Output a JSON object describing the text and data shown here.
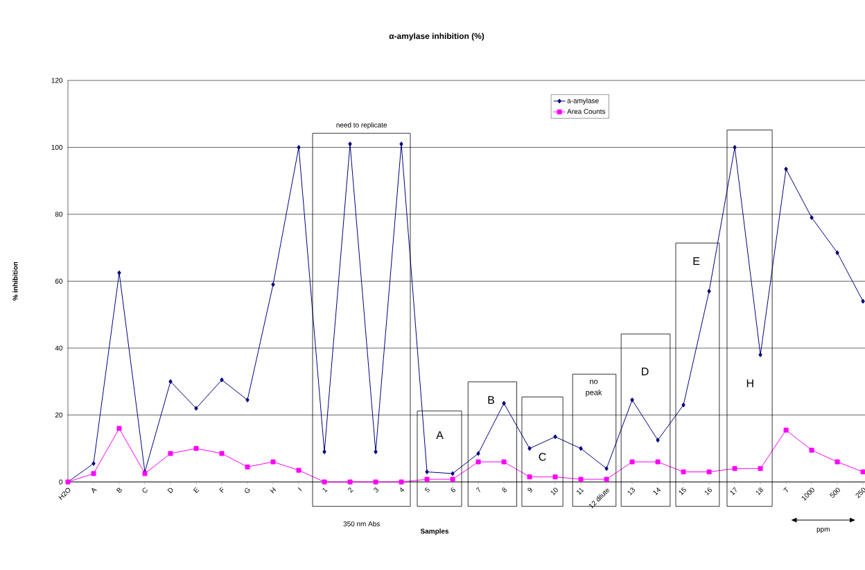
{
  "chart_data": {
    "type": "line",
    "title": "α-amylase inhibition (%)",
    "xlabel": "Samples",
    "ylabel": "% inhibition",
    "categories": [
      "H2O",
      "A",
      "B",
      "C",
      "D",
      "E",
      "F",
      "G",
      "H",
      "I",
      "1",
      "2",
      "3",
      "4",
      "5",
      "6",
      "7",
      "8",
      "9",
      "10",
      "11",
      "12 dilute",
      "13",
      "14",
      "15",
      "16",
      "17",
      "18",
      "T",
      "1000",
      "500",
      "250"
    ],
    "series": [
      {
        "name": "a-amylase",
        "color": "#000080",
        "marker": "diamond",
        "values": [
          0,
          5.5,
          62.5,
          3,
          30,
          22,
          30.5,
          24.5,
          59,
          100,
          9,
          101,
          9,
          101,
          3,
          2.5,
          8.5,
          23.5,
          10,
          13.5,
          10,
          4,
          24.5,
          12.5,
          23,
          57,
          100,
          38,
          93.5,
          79,
          68.5,
          54
        ]
      },
      {
        "name": "Area Counts",
        "color": "#ff00ff",
        "marker": "square",
        "values": [
          0,
          2.5,
          16,
          2.5,
          8.5,
          10,
          8.5,
          4.5,
          6,
          3.5,
          0,
          0,
          0,
          0,
          0.8,
          0.8,
          6,
          6,
          1.5,
          1.5,
          0.8,
          0.8,
          6,
          6,
          3,
          3,
          4,
          4,
          15.5,
          9.5,
          6,
          3
        ]
      }
    ],
    "ylim": [
      0,
      120
    ],
    "yticks": [
      0,
      20,
      40,
      60,
      80,
      100,
      120
    ],
    "grid": "y",
    "legend": "top right",
    "line_style": "solid",
    "annotations": [
      "need to replicate",
      "350 nm Abs",
      "A",
      "B",
      "C",
      "no peak",
      "D",
      "E",
      "H",
      "ppm"
    ]
  }
}
